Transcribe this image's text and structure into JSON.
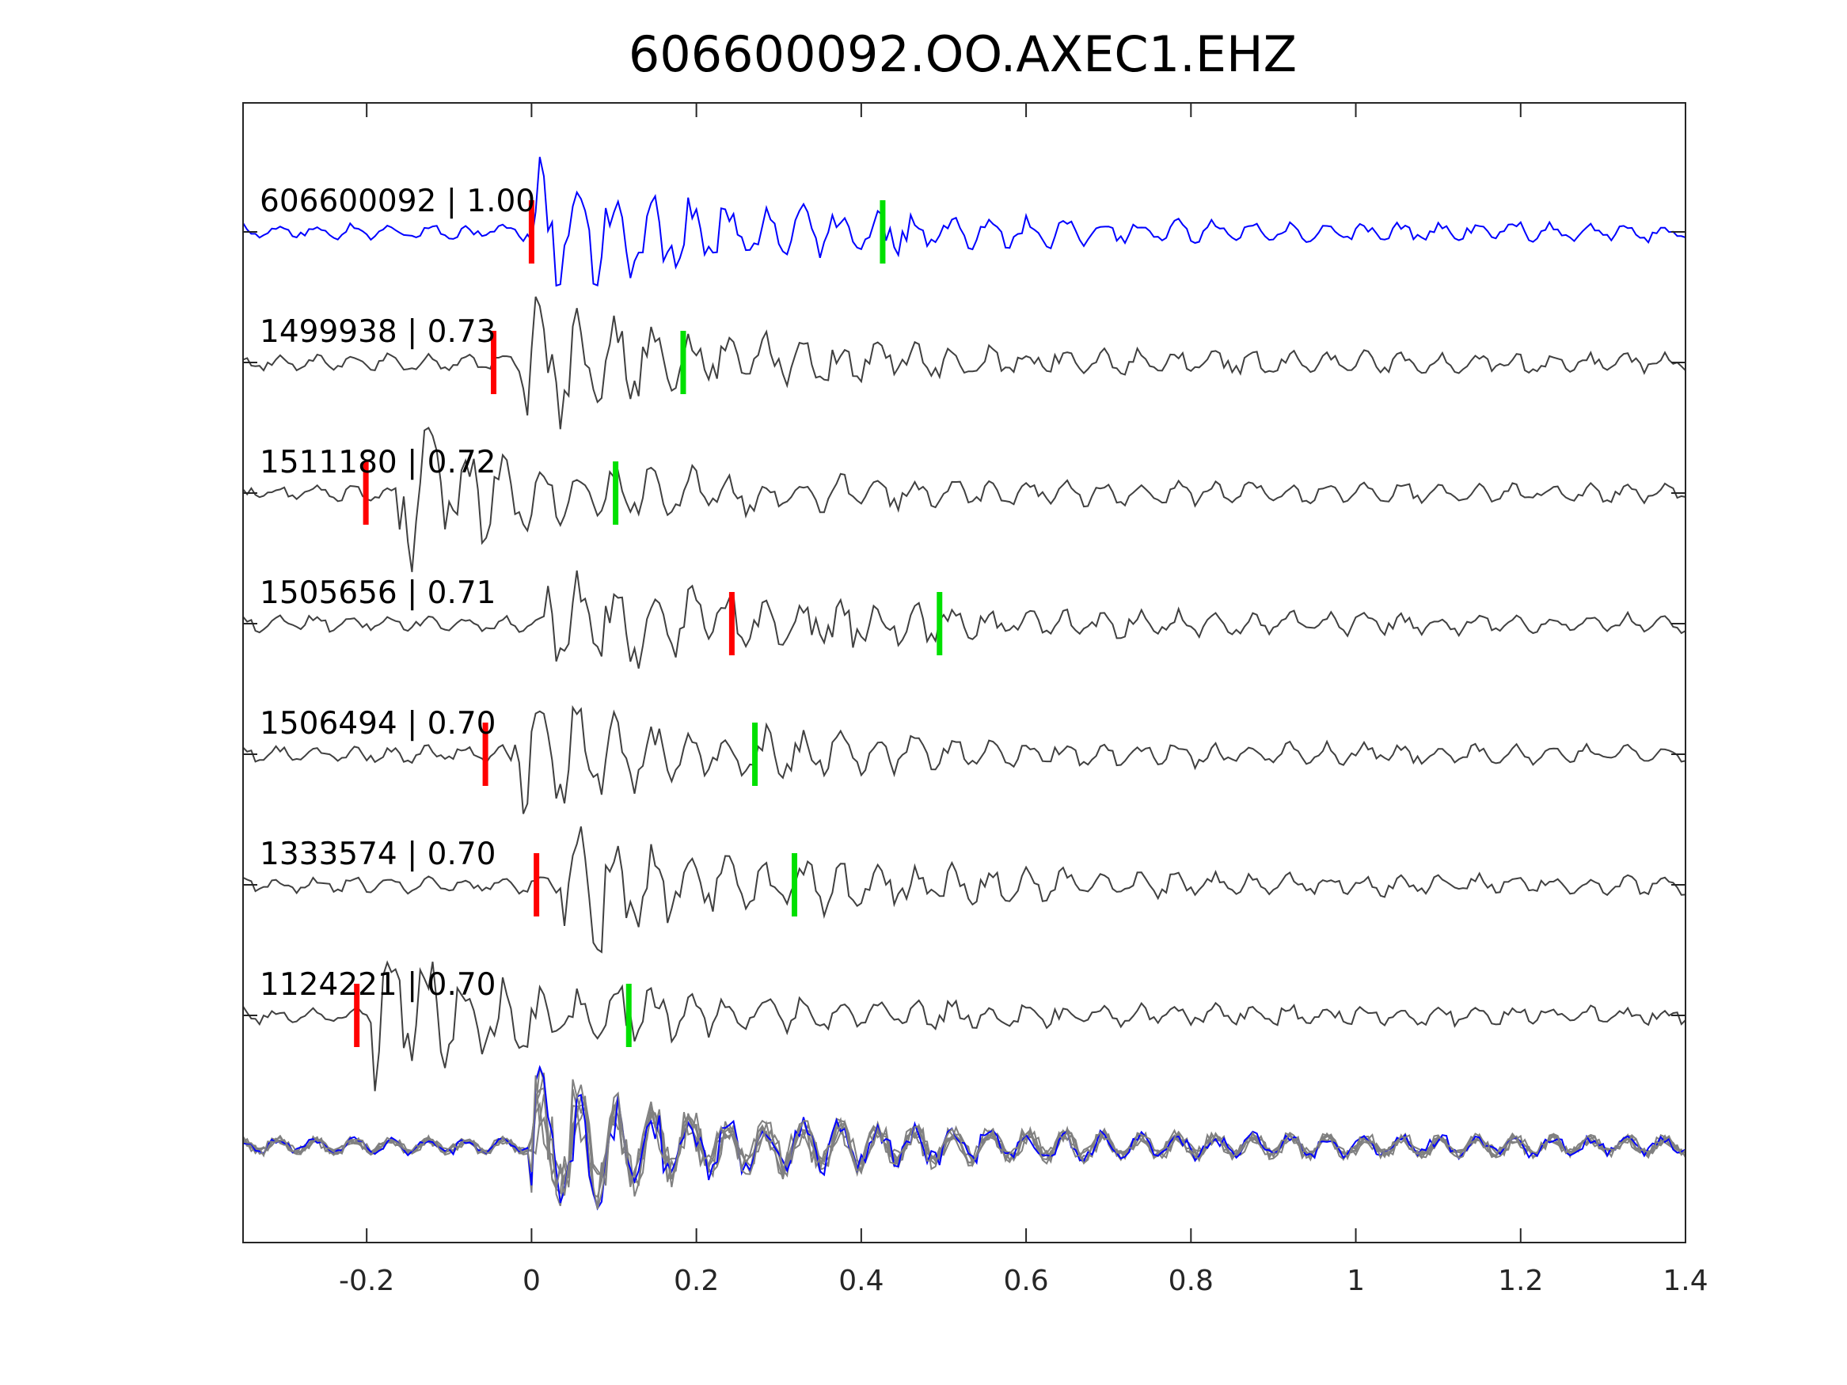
{
  "chart_data": {
    "type": "line",
    "title": "606600092.OO.AXEC1.EHZ",
    "xlabel": "",
    "ylabel": "",
    "xlim": [
      -0.35,
      1.4
    ],
    "xticks": [
      "-0.2",
      "0",
      "0.2",
      "0.4",
      "0.6",
      "0.8",
      "1",
      "1.2",
      "1.4"
    ],
    "xtick_values": [
      -0.2,
      0,
      0.2,
      0.4,
      0.6,
      0.8,
      1,
      1.2,
      1.4
    ],
    "grid": false,
    "colors": {
      "template": "#0000ff",
      "match": "#404040",
      "stack": "#808080",
      "p_pick": "#ff0000",
      "s_pick": "#00e000"
    },
    "traces": [
      {
        "label": "606600092 | 1.00",
        "id": "606600092",
        "cc": 1.0,
        "p_pick": 0.0,
        "s_pick": 0.426,
        "template": true
      },
      {
        "label": "1499938 | 0.73",
        "id": "1499938",
        "cc": 0.73,
        "p_pick": -0.046,
        "s_pick": 0.184
      },
      {
        "label": "1511180 | 0.72",
        "id": "1511180",
        "cc": 0.72,
        "p_pick": -0.201,
        "s_pick": 0.102
      },
      {
        "label": "1505656 | 0.71",
        "id": "1505656",
        "cc": 0.71,
        "p_pick": 0.243,
        "s_pick": 0.495
      },
      {
        "label": "1506494 | 0.70",
        "id": "1506494",
        "cc": 0.7,
        "p_pick": -0.056,
        "s_pick": 0.271
      },
      {
        "label": "1333574 | 0.70",
        "id": "1333574",
        "cc": 0.7,
        "p_pick": 0.006,
        "s_pick": 0.319
      },
      {
        "label": "1124221 | 0.70",
        "id": "1124221",
        "cc": 0.7,
        "p_pick": -0.212,
        "s_pick": 0.118
      }
    ]
  }
}
